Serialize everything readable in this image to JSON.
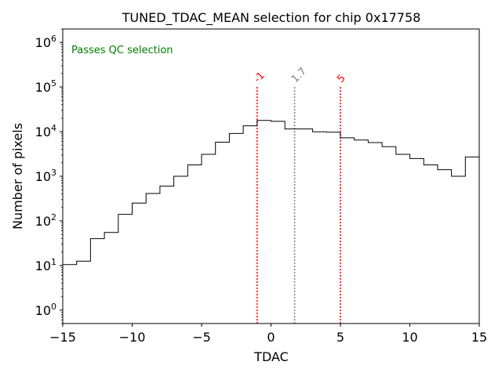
{
  "chart_data": {
    "type": "histogram",
    "title": "TUNED_TDAC_MEAN selection for chip 0x17758",
    "xlabel": "TDAC",
    "ylabel": "Number of pixels",
    "xlim": [
      -15,
      15
    ],
    "ylim": [
      0.5,
      2000000
    ],
    "yscale": "log",
    "xticks": [
      -15,
      -10,
      -5,
      0,
      5,
      10,
      15
    ],
    "xtick_labels": [
      "−15",
      "−10",
      "−5",
      "0",
      "5",
      "10",
      "15"
    ],
    "yticks": [
      {
        "value": 1,
        "base": "10",
        "exp": "0"
      },
      {
        "value": 10,
        "base": "10",
        "exp": "1"
      },
      {
        "value": 100,
        "base": "10",
        "exp": "2"
      },
      {
        "value": 1000,
        "base": "10",
        "exp": "3"
      },
      {
        "value": 10000,
        "base": "10",
        "exp": "4"
      },
      {
        "value": 100000,
        "base": "10",
        "exp": "5"
      },
      {
        "value": 1000000,
        "base": "10",
        "exp": "6"
      }
    ],
    "bin_edges": [
      -15,
      -14,
      -13,
      -12,
      -11,
      -10,
      -9,
      -8,
      -7,
      -6,
      -5,
      -4,
      -3,
      -2,
      -1,
      0,
      1,
      2,
      3,
      4,
      5,
      6,
      7,
      8,
      9,
      10,
      11,
      12,
      13,
      14,
      15
    ],
    "counts": [
      10.5,
      12.5,
      40,
      55,
      140,
      250,
      410,
      600,
      1000,
      1800,
      3100,
      5800,
      9100,
      13500,
      17800,
      17000,
      11500,
      11500,
      9900,
      9700,
      7300,
      6500,
      5700,
      4600,
      3100,
      2500,
      1800,
      1400,
      1000,
      2700
    ],
    "annotation": "Passes QC selection",
    "annotation_color": "#008000",
    "markers": [
      {
        "x": -1,
        "label": "-1",
        "color": "#ff0000"
      },
      {
        "x": 1.7,
        "label": "1.7",
        "color": "#808080"
      },
      {
        "x": 5,
        "label": "5",
        "color": "#ff0000"
      }
    ]
  }
}
